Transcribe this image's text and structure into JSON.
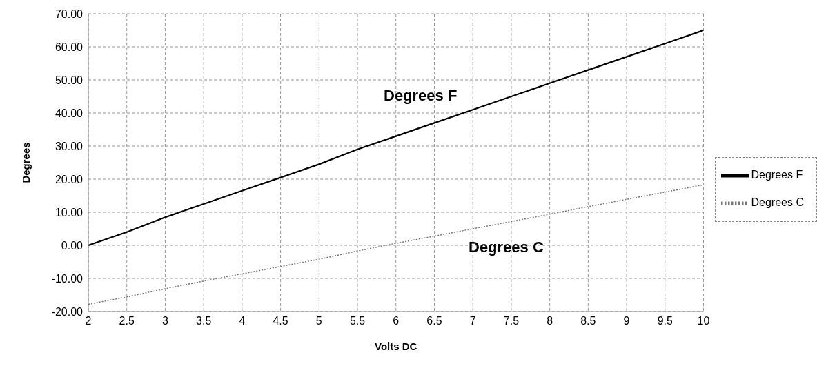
{
  "chart_data": {
    "type": "line",
    "xlabel": "Volts DC",
    "ylabel": "Degrees",
    "categories": [
      "2",
      "2.5",
      "3",
      "3.5",
      "4",
      "4.5",
      "5",
      "5.5",
      "6",
      "6.5",
      "7",
      "7.5",
      "8",
      "8.5",
      "9",
      "9.5",
      "10"
    ],
    "series": [
      {
        "name": "Degrees F",
        "color": "#000000",
        "line_style": "solid",
        "values": [
          0,
          4,
          8.5,
          12.5,
          16.5,
          20.5,
          24.5,
          29,
          33,
          37,
          41,
          45,
          49,
          53,
          57,
          61,
          65
        ]
      },
      {
        "name": "Degrees C",
        "color": "#777777",
        "line_style": "dotted",
        "values": [
          -17.8,
          -15.6,
          -13.1,
          -10.8,
          -8.6,
          -6.4,
          -4.2,
          -1.7,
          0.6,
          2.8,
          5,
          7.2,
          9.4,
          11.7,
          13.9,
          16.1,
          18.3
        ]
      }
    ],
    "ylim": [
      -20,
      70
    ],
    "yticks": [
      {
        "value": -20,
        "label": "-20.00"
      },
      {
        "value": -10,
        "label": "-10.00"
      },
      {
        "value": 0,
        "label": "0.00"
      },
      {
        "value": 10,
        "label": "10.00"
      },
      {
        "value": 20,
        "label": "20.00"
      },
      {
        "value": 30,
        "label": "30.00"
      },
      {
        "value": 40,
        "label": "40.00"
      },
      {
        "value": 50,
        "label": "50.00"
      },
      {
        "value": 60,
        "label": "60.00"
      },
      {
        "value": 70,
        "label": "70.00"
      }
    ],
    "annotations": [
      "Degrees F",
      "Degrees C"
    ],
    "grid": true,
    "legend": "right",
    "marker": "none"
  }
}
